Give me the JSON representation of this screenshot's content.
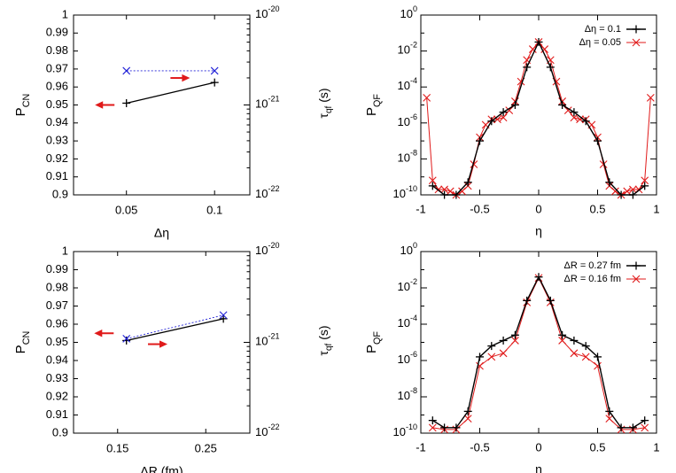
{
  "chart_data": [
    {
      "type": "scatter",
      "panel": "top-left",
      "ylabel_left": "P",
      "ylabel_left_sub": "CN",
      "ylabel_right": "τ",
      "ylabel_right_sub": "qf",
      "ylabel_right_unit": " (s)",
      "xlabel": "Δη",
      "xlim": [
        0.02,
        0.12
      ],
      "ylim": [
        0.9,
        1.0
      ],
      "xticks": [
        {
          "v": 0.05,
          "label": "0.05"
        },
        {
          "v": 0.1,
          "label": "0.1"
        }
      ],
      "yticks_left": [
        "0.9",
        "0.91",
        "0.92",
        "0.93",
        "0.94",
        "0.95",
        "0.96",
        "0.97",
        "0.98",
        "0.99",
        "1"
      ],
      "yticks_right": [
        {
          "base": "10",
          "exp": "-22"
        },
        {
          "base": "10",
          "exp": "-21"
        },
        {
          "base": "10",
          "exp": "-20"
        }
      ],
      "right_log_range": [
        -22,
        -20
      ],
      "series": [
        {
          "name": "P_CN",
          "axis": "left",
          "color": "#000000",
          "line": "solid",
          "marker": "plus",
          "x": [
            0.05,
            0.1
          ],
          "y": [
            0.951,
            0.9625
          ]
        },
        {
          "name": "tau_qf",
          "axis": "right",
          "color": "#1f1fd6",
          "line": "dotted",
          "marker": "cross",
          "x": [
            0.05,
            0.1
          ],
          "y_log10": [
            -20.62,
            -20.62
          ]
        }
      ],
      "arrows": [
        {
          "dir": "left",
          "x": 0.0377,
          "y": 0.95
        },
        {
          "dir": "right",
          "x": 0.0805,
          "y": 0.965
        }
      ]
    },
    {
      "type": "line",
      "panel": "top-right",
      "ylabel": "P",
      "ylabel_sub": "QF",
      "xlabel": "η",
      "xlim": [
        -1,
        1
      ],
      "ylim_log10": [
        -10,
        0
      ],
      "xticks": [
        {
          "v": -1,
          "label": "-1"
        },
        {
          "v": -0.5,
          "label": "-0.5"
        },
        {
          "v": 0,
          "label": "0"
        },
        {
          "v": 0.5,
          "label": "0.5"
        },
        {
          "v": 1,
          "label": "1"
        }
      ],
      "yticks_log10": [
        -10,
        -8,
        -6,
        -4,
        -2,
        0
      ],
      "legend_position": "top-right",
      "series": [
        {
          "name": "Δη = 0.1",
          "color": "#000000",
          "marker": "plus",
          "x": [
            -0.9,
            -0.8,
            -0.7,
            -0.6,
            -0.5,
            -0.4,
            -0.3,
            -0.2,
            -0.1,
            0,
            0.1,
            0.2,
            0.3,
            0.4,
            0.5,
            0.6,
            0.7,
            0.8,
            0.9
          ],
          "y_log10": [
            -9.5,
            -10,
            -10,
            -9.3,
            -7,
            -5.9,
            -5.4,
            -5,
            -2.9,
            -1.5,
            -2.9,
            -5,
            -5.4,
            -5.9,
            -7,
            -9.3,
            -10,
            -10,
            -9.5
          ]
        },
        {
          "name": "Δη = 0.05",
          "color": "#e01a1a",
          "marker": "cross",
          "x": [
            -0.95,
            -0.9,
            -0.85,
            -0.8,
            -0.75,
            -0.7,
            -0.65,
            -0.6,
            -0.55,
            -0.5,
            -0.45,
            -0.4,
            -0.35,
            -0.3,
            -0.25,
            -0.2,
            -0.15,
            -0.1,
            -0.05,
            0,
            0.05,
            0.1,
            0.15,
            0.2,
            0.25,
            0.3,
            0.35,
            0.4,
            0.45,
            0.5,
            0.55,
            0.6,
            0.65,
            0.7,
            0.75,
            0.8,
            0.85,
            0.9,
            0.95
          ],
          "y_log10": [
            -4.6,
            -9.2,
            -9.7,
            -9.7,
            -9.8,
            -10,
            -9.8,
            -9.5,
            -8.3,
            -6.8,
            -6.1,
            -5.8,
            -5.8,
            -5.7,
            -5.3,
            -4.8,
            -3.7,
            -2.5,
            -1.9,
            -1.5,
            -1.9,
            -2.5,
            -3.7,
            -4.8,
            -5.3,
            -5.7,
            -5.8,
            -5.8,
            -6.1,
            -6.8,
            -8.3,
            -9.5,
            -9.8,
            -10,
            -9.8,
            -9.7,
            -9.7,
            -9.2,
            -4.6
          ]
        }
      ]
    },
    {
      "type": "scatter",
      "panel": "bottom-left",
      "ylabel_left": "P",
      "ylabel_left_sub": "CN",
      "ylabel_right": "τ",
      "ylabel_right_sub": "qf",
      "ylabel_right_unit": " (s)",
      "xlabel": "ΔR (fm)",
      "xlim": [
        0.1,
        0.3
      ],
      "ylim": [
        0.9,
        1.0
      ],
      "xticks": [
        {
          "v": 0.15,
          "label": "0.15"
        },
        {
          "v": 0.25,
          "label": "0.25"
        }
      ],
      "yticks_left": [
        "0.9",
        "0.91",
        "0.92",
        "0.93",
        "0.94",
        "0.95",
        "0.96",
        "0.97",
        "0.98",
        "0.99",
        "1"
      ],
      "yticks_right": [
        {
          "base": "10",
          "exp": "-22"
        },
        {
          "base": "10",
          "exp": "-21"
        },
        {
          "base": "10",
          "exp": "-20"
        }
      ],
      "right_log_range": [
        -22,
        -20
      ],
      "series": [
        {
          "name": "P_CN",
          "axis": "left",
          "color": "#000000",
          "line": "solid",
          "marker": "plus",
          "x": [
            0.16,
            0.27
          ],
          "y": [
            0.951,
            0.963
          ]
        },
        {
          "name": "tau_qf",
          "axis": "right",
          "color": "#1f1fd6",
          "line": "dotted",
          "marker": "cross",
          "x": [
            0.16,
            0.27
          ],
          "y_log10": [
            -20.96,
            -20.7
          ]
        }
      ],
      "arrows": [
        {
          "dir": "left",
          "x": 0.1345,
          "y": 0.955
        },
        {
          "dir": "right",
          "x": 0.1955,
          "y": 0.949
        }
      ]
    },
    {
      "type": "line",
      "panel": "bottom-right",
      "ylabel": "P",
      "ylabel_sub": "QF",
      "xlabel": "η",
      "xlim": [
        -1,
        1
      ],
      "ylim_log10": [
        -10,
        0
      ],
      "xticks": [
        {
          "v": -1,
          "label": "-1"
        },
        {
          "v": -0.5,
          "label": "-0.5"
        },
        {
          "v": 0,
          "label": "0"
        },
        {
          "v": 0.5,
          "label": "0.5"
        },
        {
          "v": 1,
          "label": "1"
        }
      ],
      "yticks_log10": [
        -10,
        -8,
        -6,
        -4,
        -2,
        0
      ],
      "legend_position": "top-right",
      "series": [
        {
          "name": "ΔR = 0.27 fm",
          "color": "#000000",
          "marker": "plus",
          "x": [
            -0.9,
            -0.8,
            -0.7,
            -0.6,
            -0.5,
            -0.4,
            -0.3,
            -0.2,
            -0.1,
            0,
            0.1,
            0.2,
            0.3,
            0.4,
            0.5,
            0.6,
            0.7,
            0.8,
            0.9
          ],
          "y_log10": [
            -9.3,
            -9.7,
            -9.7,
            -8.8,
            -5.8,
            -5.2,
            -4.9,
            -4.6,
            -2.7,
            -1.4,
            -2.7,
            -4.6,
            -4.9,
            -5.2,
            -5.8,
            -8.8,
            -9.7,
            -9.7,
            -9.3
          ]
        },
        {
          "name": "ΔR = 0.16 fm",
          "color": "#e01a1a",
          "marker": "cross",
          "x": [
            -0.9,
            -0.8,
            -0.7,
            -0.6,
            -0.5,
            -0.4,
            -0.3,
            -0.2,
            -0.1,
            0,
            0.1,
            0.2,
            0.3,
            0.4,
            0.5,
            0.6,
            0.7,
            0.8,
            0.9
          ],
          "y_log10": [
            -9.7,
            -9.8,
            -9.8,
            -9.2,
            -6.3,
            -5.8,
            -5.6,
            -4.9,
            -2.8,
            -1.45,
            -2.8,
            -4.9,
            -5.6,
            -5.8,
            -6.3,
            -9.2,
            -9.8,
            -9.8,
            -9.7
          ]
        }
      ]
    }
  ]
}
